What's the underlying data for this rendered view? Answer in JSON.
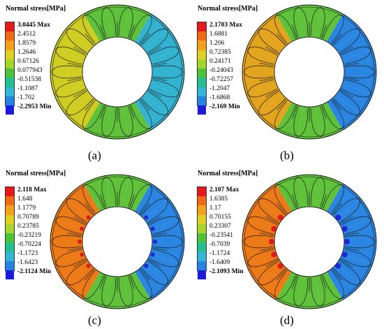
{
  "panels": [
    {
      "id": "a",
      "title": "Normal stress[MPa]",
      "legend": [
        "3.0445 Max",
        "2.4512",
        "1.8579",
        "1.2646",
        "0.67126",
        "0.077943",
        "-0.51538",
        "-1.1087",
        "-1.702",
        "-2.2953 Min"
      ],
      "caption": "(a)",
      "disk_scheme": "a"
    },
    {
      "id": "b",
      "title": "Normal stress[MPa]",
      "legend": [
        "2.1703 Max",
        "1.6881",
        "1.206",
        "0.72385",
        "0.24171",
        "-0.24043",
        "-0.72257",
        "-1.2047",
        "-1.6868",
        "-2.169 Min"
      ],
      "caption": "(b)",
      "disk_scheme": "b"
    },
    {
      "id": "c",
      "title": "Normal stress[MPa]",
      "legend": [
        "2.118 Max",
        "1.648",
        "1.1779",
        "0.70789",
        "0.23785",
        "-0.23219",
        "-0.70224",
        "-1.1723",
        "-1.6423",
        "-2.1124 Min"
      ],
      "caption": "(c)",
      "disk_scheme": "c"
    },
    {
      "id": "d",
      "title": "Normal stress[MPa]",
      "legend": [
        "2.107 Max",
        "1.6385",
        "1.17",
        "0.70155",
        "0.23307",
        "-0.23541",
        "-0.7039",
        "-1.1724",
        "-1.6409",
        "-2.1093 Min"
      ],
      "caption": "(d)",
      "disk_scheme": "d"
    }
  ],
  "legend_colors": [
    "#e8171b",
    "#ef6a12",
    "#f3a11a",
    "#dfd021",
    "#a7d62a",
    "#4cc33b",
    "#23bf8f",
    "#33b6d8",
    "#2584e2",
    "#1c1adc"
  ]
}
